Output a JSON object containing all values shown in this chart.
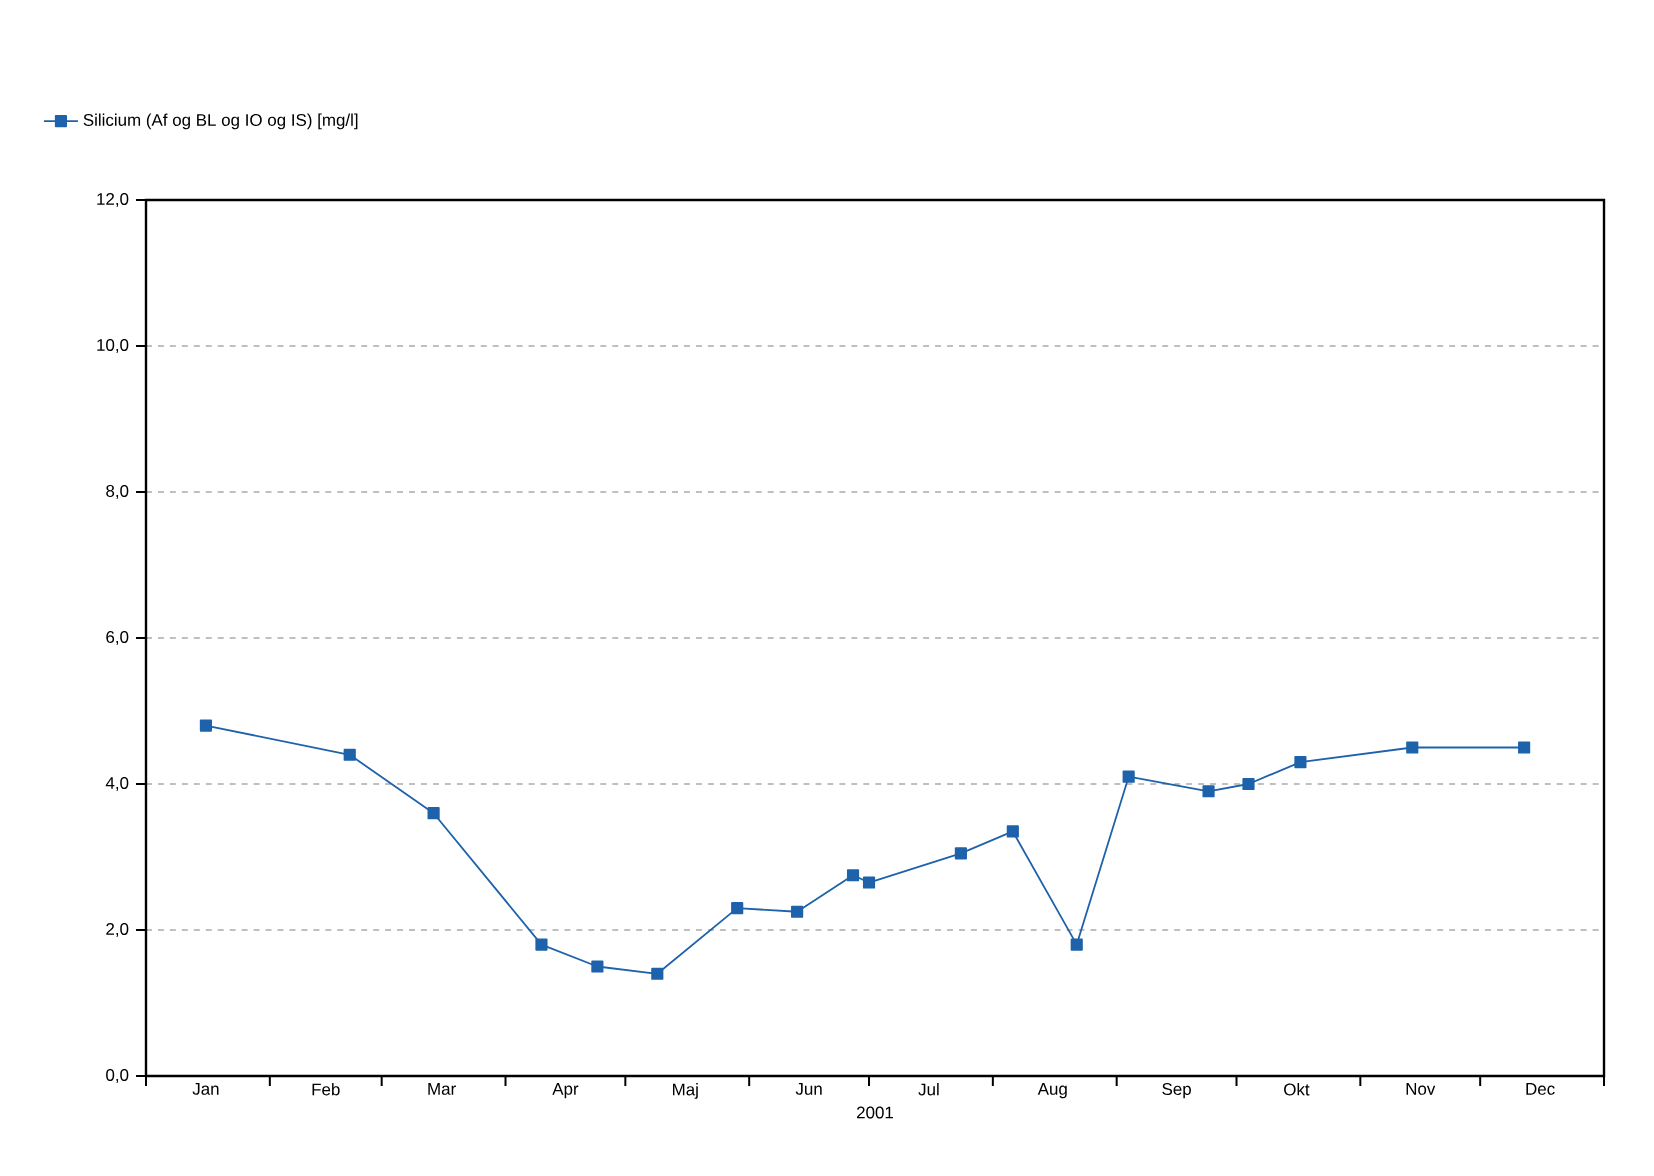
{
  "chart_data": {
    "type": "line",
    "xlabel": "2001",
    "x": [
      "2001-01-16",
      "2001-02-21",
      "2001-03-14",
      "2001-04-10",
      "2001-04-24",
      "2001-05-09",
      "2001-05-29",
      "2001-06-13",
      "2001-06-27",
      "2001-07-01",
      "2001-07-24",
      "2001-08-06",
      "2001-08-22",
      "2001-09-04",
      "2001-09-24",
      "2001-10-04",
      "2001-10-17",
      "2001-11-14",
      "2001-12-12"
    ],
    "series": [
      {
        "name": "Silicium (Af og BL og IO og IS) [mg/l]",
        "color": "#1d62aa",
        "values": [
          4.8,
          4.4,
          3.6,
          1.8,
          1.5,
          1.4,
          2.3,
          2.25,
          2.75,
          2.65,
          3.05,
          3.35,
          1.8,
          4.1,
          3.9,
          4.0,
          4.3,
          4.5,
          4.5
        ]
      }
    ],
    "xlim": [
      "2001-01-01",
      "2002-01-01"
    ],
    "xticks": [
      {
        "value": "2001-01-01",
        "label": null
      },
      {
        "value": "2001-01-16",
        "label": "Jan"
      },
      {
        "value": "2001-02-01",
        "label": null
      },
      {
        "value": "2001-02-15",
        "label": "Feb"
      },
      {
        "value": "2001-03-01",
        "label": null
      },
      {
        "value": "2001-03-16",
        "label": "Mar"
      },
      {
        "value": "2001-04-01",
        "label": null
      },
      {
        "value": "2001-04-16",
        "label": "Apr"
      },
      {
        "value": "2001-05-01",
        "label": null
      },
      {
        "value": "2001-05-16",
        "label": "Maj"
      },
      {
        "value": "2001-06-01",
        "label": null
      },
      {
        "value": "2001-06-16",
        "label": "Jun"
      },
      {
        "value": "2001-07-01",
        "label": null
      },
      {
        "value": "2001-07-16",
        "label": "Jul"
      },
      {
        "value": "2001-08-01",
        "label": null
      },
      {
        "value": "2001-08-16",
        "label": "Aug"
      },
      {
        "value": "2001-09-01",
        "label": null
      },
      {
        "value": "2001-09-16",
        "label": "Sep"
      },
      {
        "value": "2001-10-01",
        "label": null
      },
      {
        "value": "2001-10-16",
        "label": "Okt"
      },
      {
        "value": "2001-11-01",
        "label": null
      },
      {
        "value": "2001-11-16",
        "label": "Nov"
      },
      {
        "value": "2001-12-01",
        "label": null
      },
      {
        "value": "2001-12-16",
        "label": "Dec"
      },
      {
        "value": "2002-01-01",
        "label": null
      }
    ],
    "ylim": [
      0,
      12
    ],
    "yticks": [
      {
        "value": 0,
        "label": "0,0"
      },
      {
        "value": 2,
        "label": "2,0"
      },
      {
        "value": 4,
        "label": "4,0"
      },
      {
        "value": 6,
        "label": "6,0"
      },
      {
        "value": 8,
        "label": "8,0"
      },
      {
        "value": 10,
        "label": "10,0"
      },
      {
        "value": 12,
        "label": "12,0"
      }
    ],
    "grid": "y",
    "legend": "top left",
    "marker": "square",
    "line_style": "solid"
  }
}
